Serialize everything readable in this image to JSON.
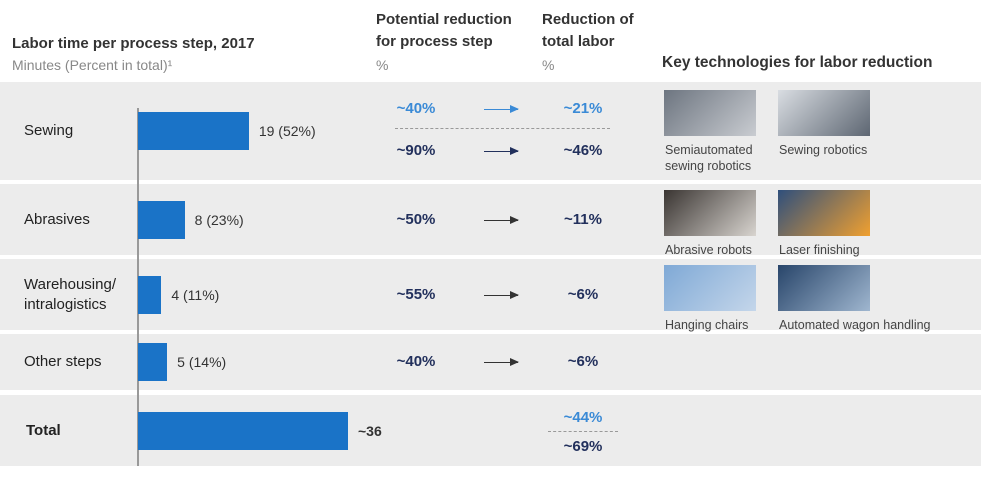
{
  "chart_data": {
    "type": "bar",
    "title": "Labor time per process step, 2017",
    "subtitle": "Minutes (Percent in total)¹",
    "categories": [
      "Sewing",
      "Abrasives",
      "Warehousing/\nintralogistics",
      "Other steps",
      "Total"
    ],
    "values": [
      19,
      8,
      4,
      5,
      36
    ],
    "value_labels": [
      "19 (52%)",
      "8 (23%)",
      "4 (11%)",
      "5 (14%)",
      "~36"
    ],
    "color": "#1a73c7"
  },
  "columns": {
    "reduction_header": "Potential reduction\nfor process step",
    "reduction_unit": "%",
    "total_header": "Reduction of\ntotal labor",
    "total_unit": "%",
    "tech_header": "Key technologies for labor reduction"
  },
  "rows": [
    {
      "reduction": [
        "~40%",
        "~90%"
      ],
      "total_reduction": [
        "~21%",
        "~46%"
      ],
      "technologies": [
        "Semiautomated\nsewing robotics",
        "Sewing robotics"
      ]
    },
    {
      "reduction": [
        "~50%"
      ],
      "total_reduction": [
        "~11%"
      ],
      "technologies": [
        "Abrasive robots",
        "Laser finishing"
      ]
    },
    {
      "reduction": [
        "~55%"
      ],
      "total_reduction": [
        "~6%"
      ],
      "technologies": [
        "Hanging chairs",
        "Automated wagon handling"
      ]
    },
    {
      "reduction": [
        "~40%"
      ],
      "total_reduction": [
        "~6%"
      ]
    },
    {
      "total_reduction": [
        "~44%",
        "~69%"
      ]
    }
  ]
}
